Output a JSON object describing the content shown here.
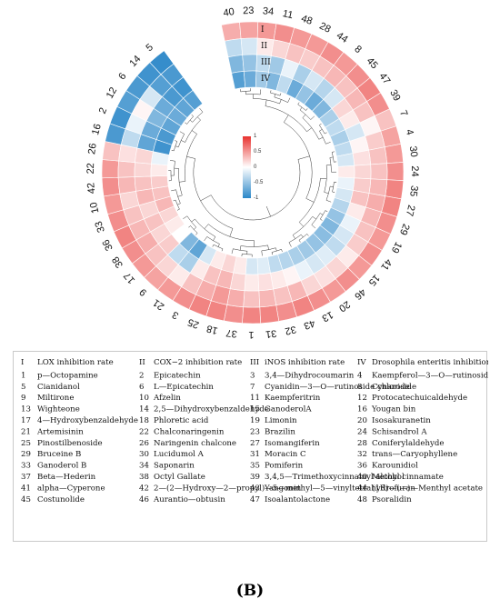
{
  "chart_data": {
    "type": "heatmap",
    "layout": "circular",
    "ring_labels": [
      "I",
      "II",
      "III",
      "IV"
    ],
    "compound_order": [
      40,
      23,
      34,
      11,
      48,
      28,
      44,
      8,
      45,
      47,
      39,
      7,
      4,
      30,
      24,
      35,
      27,
      29,
      19,
      41,
      15,
      46,
      20,
      13,
      43,
      32,
      31,
      1,
      37,
      18,
      25,
      3,
      21,
      9,
      17,
      38,
      36,
      33,
      10,
      42,
      22,
      26,
      16,
      2,
      12,
      6,
      14,
      5
    ],
    "scale": {
      "min": -1,
      "max": 1,
      "ticks": [
        "1",
        "0.5",
        "0",
        "-0.5",
        "-1"
      ],
      "colors": [
        "#e8322f",
        "#ffffff",
        "#2b87c8"
      ]
    },
    "values": {
      "5": [
        -0.95,
        -0.85,
        -0.9,
        -0.8
      ],
      "14": [
        -0.9,
        -0.8,
        -0.85,
        -0.75
      ],
      "6": [
        -0.85,
        -0.2,
        -0.7,
        -0.7
      ],
      "12": [
        -0.8,
        0.05,
        -0.6,
        -0.75
      ],
      "2": [
        -0.9,
        -0.1,
        -0.7,
        -0.85
      ],
      "16": [
        -0.85,
        -0.3,
        -0.75,
        -0.9
      ],
      "26": [
        0.3,
        0.15,
        0.2,
        -0.1
      ],
      "22": [
        0.5,
        0.3,
        0.2,
        0.1
      ],
      "42": [
        0.55,
        0.35,
        0.3,
        0.25
      ],
      "10": [
        0.5,
        0.2,
        0.35,
        0.3
      ],
      "33": [
        0.55,
        0.3,
        0.2,
        0.35
      ],
      "36": [
        0.6,
        0.35,
        0.3,
        0.2
      ],
      "38": [
        0.55,
        0.4,
        0.2,
        0.1
      ],
      "17": [
        0.5,
        0.3,
        0.25,
        0.0
      ],
      "9": [
        0.45,
        0.2,
        -0.3,
        -0.6
      ],
      "21": [
        0.5,
        0.1,
        -0.4,
        -0.75
      ],
      "3": [
        0.55,
        0.3,
        0.1,
        -0.2
      ],
      "25": [
        0.6,
        0.4,
        0.3,
        0.1
      ],
      "18": [
        0.6,
        0.5,
        0.35,
        0.2
      ],
      "37": [
        0.55,
        0.4,
        0.2,
        0.1
      ],
      "1": [
        0.6,
        0.3,
        0.1,
        -0.2
      ],
      "31": [
        0.6,
        0.35,
        0.15,
        -0.15
      ],
      "32": [
        0.55,
        0.3,
        0.1,
        -0.3
      ],
      "43": [
        0.6,
        0.35,
        0.05,
        -0.35
      ],
      "13": [
        0.55,
        0.2,
        -0.1,
        -0.4
      ],
      "20": [
        0.5,
        0.15,
        -0.2,
        -0.45
      ],
      "46": [
        0.55,
        0.2,
        -0.15,
        -0.5
      ],
      "15": [
        0.5,
        0.1,
        -0.3,
        -0.55
      ],
      "41": [
        0.55,
        0.25,
        -0.2,
        -0.6
      ],
      "19": [
        0.5,
        0.3,
        -0.1,
        -0.5
      ],
      "29": [
        0.55,
        0.35,
        0.1,
        -0.35
      ],
      "27": [
        0.6,
        0.4,
        0.3,
        -0.2
      ],
      "35": [
        0.6,
        0.35,
        0.25,
        -0.1
      ],
      "24": [
        0.55,
        0.3,
        0.2,
        0.1
      ],
      "30": [
        0.5,
        0.3,
        0.15,
        -0.2
      ],
      "4": [
        0.45,
        0.25,
        0.05,
        -0.3
      ],
      "7": [
        0.3,
        0.05,
        -0.2,
        -0.4
      ],
      "39": [
        0.55,
        0.3,
        0.1,
        -0.3
      ],
      "47": [
        0.6,
        0.35,
        0.2,
        -0.4
      ],
      "45": [
        0.55,
        0.3,
        -0.2,
        -0.6
      ],
      "8": [
        0.5,
        0.35,
        -0.35,
        -0.7
      ],
      "44": [
        0.55,
        0.3,
        -0.2,
        -0.5
      ],
      "28": [
        0.5,
        0.25,
        -0.4,
        -0.7
      ],
      "48": [
        0.5,
        0.3,
        -0.1,
        -0.3
      ],
      "11": [
        0.55,
        0.2,
        -0.45,
        -0.6
      ],
      "34": [
        0.5,
        0.1,
        -0.3,
        -0.45
      ],
      "23": [
        0.45,
        -0.2,
        -0.5,
        -0.7
      ],
      "40": [
        0.4,
        -0.3,
        -0.6,
        -0.8
      ]
    }
  },
  "legend": {
    "conditions": [
      {
        "code": "I",
        "text": "LOX inhibition rate"
      },
      {
        "code": "II",
        "text": "COX−2 inhibition rate"
      },
      {
        "code": "III",
        "text": "iNOS inhibition rate"
      },
      {
        "code": "IV",
        "text": "Drosophila enteritis inhibition rate"
      }
    ],
    "compounds": [
      {
        "num": "1",
        "name": "p—Octopamine"
      },
      {
        "num": "2",
        "name": "Epicatechin"
      },
      {
        "num": "3",
        "name": "3,4—Dihydrocoumarin"
      },
      {
        "num": "4",
        "name": "Kaempferol—3—O—rutinoside"
      },
      {
        "num": "5",
        "name": "Cianidanol"
      },
      {
        "num": "6",
        "name": "L—Epicatechin"
      },
      {
        "num": "7",
        "name": "Cyanidin—3—O—rutinoside chloride"
      },
      {
        "num": "8",
        "name": "Cynaroside"
      },
      {
        "num": "9",
        "name": "Miltirone"
      },
      {
        "num": "10",
        "name": "Afzelin"
      },
      {
        "num": "11",
        "name": "Kaempferitrin"
      },
      {
        "num": "12",
        "name": "Protocatechuicaldehyde"
      },
      {
        "num": "13",
        "name": "Wighteone"
      },
      {
        "num": "14",
        "name": "2,5—Dihydroxybenzaldehyde"
      },
      {
        "num": "15",
        "name": "GanoderolA"
      },
      {
        "num": "16",
        "name": "Yougan bin"
      },
      {
        "num": "17",
        "name": "4—Hydroxybenzaldehyde"
      },
      {
        "num": "18",
        "name": "Phloretic acid"
      },
      {
        "num": "19",
        "name": "Limonin"
      },
      {
        "num": "20",
        "name": "Isosakuranetin"
      },
      {
        "num": "21",
        "name": "Artemisinin"
      },
      {
        "num": "22",
        "name": "Chalconaringenin"
      },
      {
        "num": "23",
        "name": "Brazilin"
      },
      {
        "num": "24",
        "name": "Schisandrol A"
      },
      {
        "num": "25",
        "name": "Pinostilbenoside"
      },
      {
        "num": "26",
        "name": "Naringenin chalcone"
      },
      {
        "num": "27",
        "name": "Isomangiferin"
      },
      {
        "num": "28",
        "name": "Coniferylaldehyde"
      },
      {
        "num": "29",
        "name": "Bruceine B"
      },
      {
        "num": "30",
        "name": "Lucidumol A"
      },
      {
        "num": "31",
        "name": "Moracin C"
      },
      {
        "num": "32",
        "name": "trans—Caryophyllene"
      },
      {
        "num": "33",
        "name": "Ganoderol B"
      },
      {
        "num": "34",
        "name": "Saponarin"
      },
      {
        "num": "35",
        "name": "Pomiferin"
      },
      {
        "num": "36",
        "name": "Karounidiol"
      },
      {
        "num": "37",
        "name": "Beta—Hederin"
      },
      {
        "num": "38",
        "name": "Octyl Gallate"
      },
      {
        "num": "39",
        "name": "3,4,5—Trimethoxycinnamyl alcohol"
      },
      {
        "num": "40",
        "name": "Methyl cinnamate"
      },
      {
        "num": "41",
        "name": "alpha—Cyperone"
      },
      {
        "num": "42",
        "name": "2—(2—Hydroxy—2—propyl)—5—methyl—5—vinyltetrahydrofuran"
      },
      {
        "num": "43",
        "name": "Yangonin"
      },
      {
        "num": "44",
        "name": "(1R)—(—)—Menthyl acetate"
      },
      {
        "num": "45",
        "name": "Costunolide"
      },
      {
        "num": "46",
        "name": "Aurantio—obtusin"
      },
      {
        "num": "47",
        "name": "Isoalantolactone"
      },
      {
        "num": "48",
        "name": "Psoralidin"
      }
    ]
  },
  "panel_label": "(B)"
}
